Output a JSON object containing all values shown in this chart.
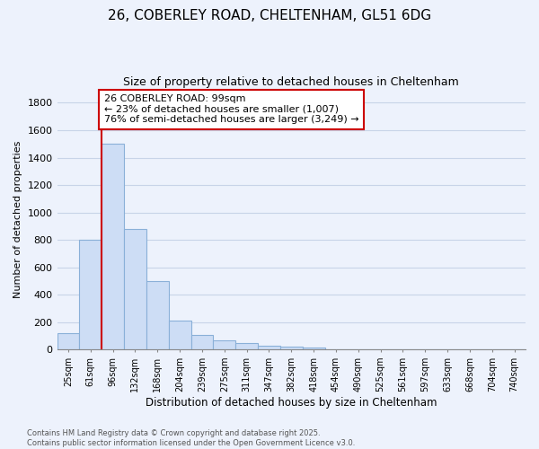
{
  "title_line1": "26, COBERLEY ROAD, CHELTENHAM, GL51 6DG",
  "title_line2": "Size of property relative to detached houses in Cheltenham",
  "xlabel": "Distribution of detached houses by size in Cheltenham",
  "ylabel": "Number of detached properties",
  "categories": [
    "25sqm",
    "61sqm",
    "96sqm",
    "132sqm",
    "168sqm",
    "204sqm",
    "239sqm",
    "275sqm",
    "311sqm",
    "347sqm",
    "382sqm",
    "418sqm",
    "454sqm",
    "490sqm",
    "525sqm",
    "561sqm",
    "597sqm",
    "633sqm",
    "668sqm",
    "704sqm",
    "740sqm"
  ],
  "values": [
    120,
    800,
    1500,
    880,
    500,
    210,
    105,
    65,
    48,
    28,
    20,
    15,
    5,
    3,
    1,
    0,
    0,
    0,
    0,
    0,
    0
  ],
  "bar_color": "#cdddf5",
  "bar_edge_color": "#8ab0d8",
  "property_line_color": "#cc0000",
  "annotation_text": "26 COBERLEY ROAD: 99sqm\n← 23% of detached houses are smaller (1,007)\n76% of semi-detached houses are larger (3,249) →",
  "annotation_box_color": "white",
  "annotation_box_edge": "#cc0000",
  "ylim": [
    0,
    1900
  ],
  "yticks": [
    0,
    200,
    400,
    600,
    800,
    1000,
    1200,
    1400,
    1600,
    1800
  ],
  "background_color": "#edf2fc",
  "grid_color": "#c8d4e8",
  "footnote": "Contains HM Land Registry data © Crown copyright and database right 2025.\nContains public sector information licensed under the Open Government Licence v3.0."
}
